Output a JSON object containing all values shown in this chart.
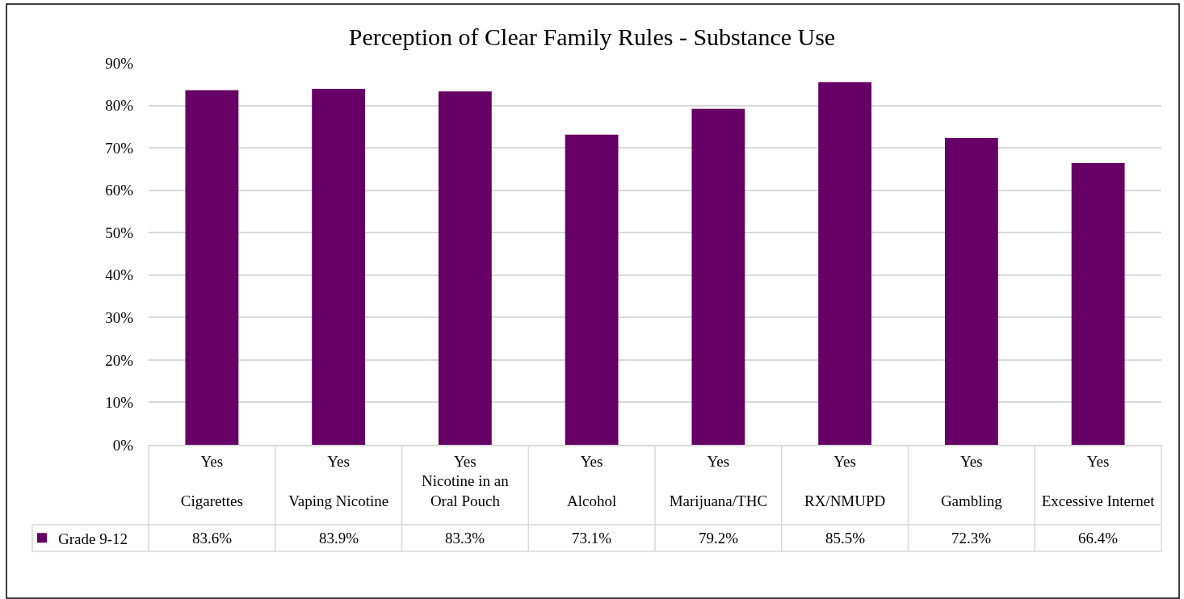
{
  "chart_data": {
    "type": "bar",
    "title": "Perception of Clear Family Rules - Substance Use",
    "categories": [
      "Yes\nCigarettes",
      "Yes\nVaping Nicotine",
      "Yes\nNicotine in an Oral Pouch",
      "Yes\nAlcohol",
      "Yes\nMarijuana/THC",
      "Yes\nRX/NMUPD",
      "Yes\nGambling",
      "Yes\nExcessive Internet"
    ],
    "series": [
      {
        "name": "Grade 9-12",
        "color": "#660066",
        "values": [
          83.6,
          83.9,
          83.3,
          73.1,
          79.2,
          85.5,
          72.3,
          66.4
        ],
        "value_labels": [
          "83.6%",
          "83.9%",
          "83.3%",
          "73.1%",
          "79.2%",
          "85.5%",
          "72.3%",
          "66.4%"
        ]
      }
    ],
    "ylim": [
      0,
      90
    ],
    "yticks": [
      {
        "value": 0,
        "label": "0%"
      },
      {
        "value": 10,
        "label": "10%"
      },
      {
        "value": 20,
        "label": "20%"
      },
      {
        "value": 30,
        "label": "30%"
      },
      {
        "value": 40,
        "label": "40%"
      },
      {
        "value": 50,
        "label": "50%"
      },
      {
        "value": 60,
        "label": "60%"
      },
      {
        "value": 70,
        "label": "70%"
      },
      {
        "value": 80,
        "label": "80%"
      },
      {
        "value": 90,
        "label": "90%"
      }
    ],
    "grid": "y",
    "legend": "bottom left"
  }
}
